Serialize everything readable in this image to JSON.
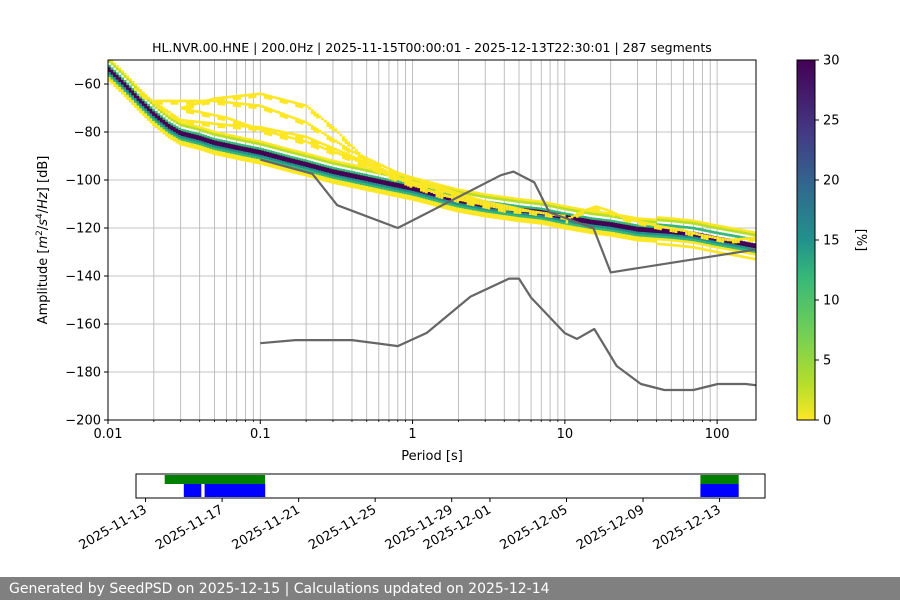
{
  "chart_data": {
    "type": "heatmap",
    "title": "HL.NVR.00.HNE | 200.0Hz | 2025-11-15T00:00:01 - 2025-12-13T22:30:01 | 287 segments",
    "xlabel": "Period [s]",
    "ylabel": "Amplitude [$m^2/s^4/Hz$] [dB]",
    "xscale": "log",
    "xlim": [
      0.01,
      180
    ],
    "ylim": [
      -200,
      -50
    ],
    "xticks": [
      "0.01",
      "0.1",
      "1",
      "10",
      "100"
    ],
    "yticks": [
      "−60",
      "−80",
      "−100",
      "−120",
      "−140",
      "−160",
      "−180",
      "−200"
    ],
    "grid": true,
    "colorbar": {
      "label": "[%]",
      "range": [
        0,
        30
      ],
      "ticks": [
        "0",
        "5",
        "10",
        "15",
        "20",
        "25",
        "30"
      ],
      "colormap": "viridis_r"
    },
    "mode_curve": {
      "x": [
        0.01,
        0.013,
        0.016,
        0.02,
        0.025,
        0.03,
        0.04,
        0.05,
        0.07,
        0.1,
        0.15,
        0.2,
        0.3,
        0.5,
        0.7,
        1,
        1.5,
        2,
        3,
        5,
        7,
        10,
        15,
        20,
        30,
        50,
        70,
        100,
        150,
        180
      ],
      "y": [
        -53,
        -60,
        -66,
        -72,
        -77,
        -80,
        -82,
        -84,
        -86,
        -88,
        -91,
        -93,
        -96,
        -99,
        -101,
        -103,
        -106,
        -108,
        -110,
        -112,
        -113,
        -115,
        -117,
        -118,
        -120,
        -121,
        -122,
        -124,
        -126,
        -127
      ]
    },
    "secondary_branches": [
      {
        "x": [
          0.02,
          0.05,
          0.1,
          0.2,
          0.4,
          0.8,
          1.5,
          3,
          6,
          10
        ],
        "y": [
          -67,
          -67,
          -69,
          -76,
          -88,
          -97,
          -103,
          -109,
          -113,
          -115
        ]
      },
      {
        "x": [
          0.03,
          0.05,
          0.1,
          0.2,
          0.3,
          0.5,
          1,
          2,
          4,
          6
        ],
        "y": [
          -70,
          -66,
          -64,
          -69,
          -78,
          -92,
          -102,
          -108,
          -112,
          -113
        ]
      },
      {
        "x": [
          0.015,
          0.03,
          0.06,
          0.1,
          0.2,
          0.4,
          0.7,
          1.5,
          3,
          5
        ],
        "y": [
          -62,
          -75,
          -77,
          -78,
          -82,
          -90,
          -98,
          -106,
          -110,
          -112
        ]
      },
      {
        "x": [
          0.03,
          0.06,
          0.1,
          0.2,
          0.4,
          0.8,
          1.5,
          3
        ],
        "y": [
          -70,
          -74,
          -79,
          -84,
          -91,
          -99,
          -104,
          -110
        ]
      },
      {
        "x": [
          10,
          13,
          16,
          20,
          25,
          30,
          40,
          60,
          80,
          120,
          180
        ],
        "y": [
          -117,
          -113,
          -111,
          -113,
          -116,
          -117,
          -119,
          -121,
          -123,
          -125,
          -124
        ]
      }
    ],
    "noise_models": [
      {
        "x": [
          0.1,
          0.22,
          0.32,
          0.8,
          3.8,
          4.6,
          6.3,
          7.9,
          15.4,
          20,
          354.8
        ],
        "y": [
          -91.5,
          -97.4,
          -110.5,
          -120,
          -98,
          -96.5,
          -101,
          -113.5,
          -120,
          -138.5,
          -126
        ]
      },
      {
        "x": [
          0.1,
          0.17,
          0.4,
          0.8,
          1.24,
          2.4,
          4.3,
          5,
          6,
          10,
          12,
          15.6,
          21.9,
          31.6,
          45,
          70,
          101,
          154,
          328
        ],
        "y": [
          -168,
          -166.7,
          -166.7,
          -169.2,
          -163.7,
          -148.6,
          -141.1,
          -141.1,
          -149,
          -163.8,
          -166.2,
          -162.1,
          -177.5,
          -185,
          -187.5,
          -187.5,
          -185,
          -185,
          -187.5
        ]
      }
    ]
  },
  "timeline": {
    "ticks": [
      "2025-11-13",
      "2025-11-17",
      "2025-11-21",
      "2025-11-25",
      "2025-11-29",
      "2025-12-01",
      "2025-12-05",
      "2025-12-09",
      "2025-12-13"
    ],
    "tick_dates": [
      "2025-11-13",
      "2025-11-17",
      "2025-11-21",
      "2025-11-25",
      "2025-11-29",
      "2025-12-01",
      "2025-12-05",
      "2025-12-09",
      "2025-12-13"
    ],
    "range": [
      "2025-11-12T12:00",
      "2025-12-15T09:00"
    ],
    "available_color": "#008000",
    "used_color": "#0000ff",
    "available": [
      [
        "2025-11-14T00:00",
        "2025-11-19T06:00"
      ],
      [
        "2025-12-12T00:00",
        "2025-12-14T00:00"
      ]
    ],
    "used": [
      [
        "2025-11-15T00:00",
        "2025-11-15T22:00"
      ],
      [
        "2025-11-16T02:00",
        "2025-11-19T06:00"
      ],
      [
        "2025-12-12T00:00",
        "2025-12-14T00:00"
      ]
    ]
  },
  "footer": "Generated by SeedPSD on 2025-12-15 | Calculations updated on 2025-12-14"
}
